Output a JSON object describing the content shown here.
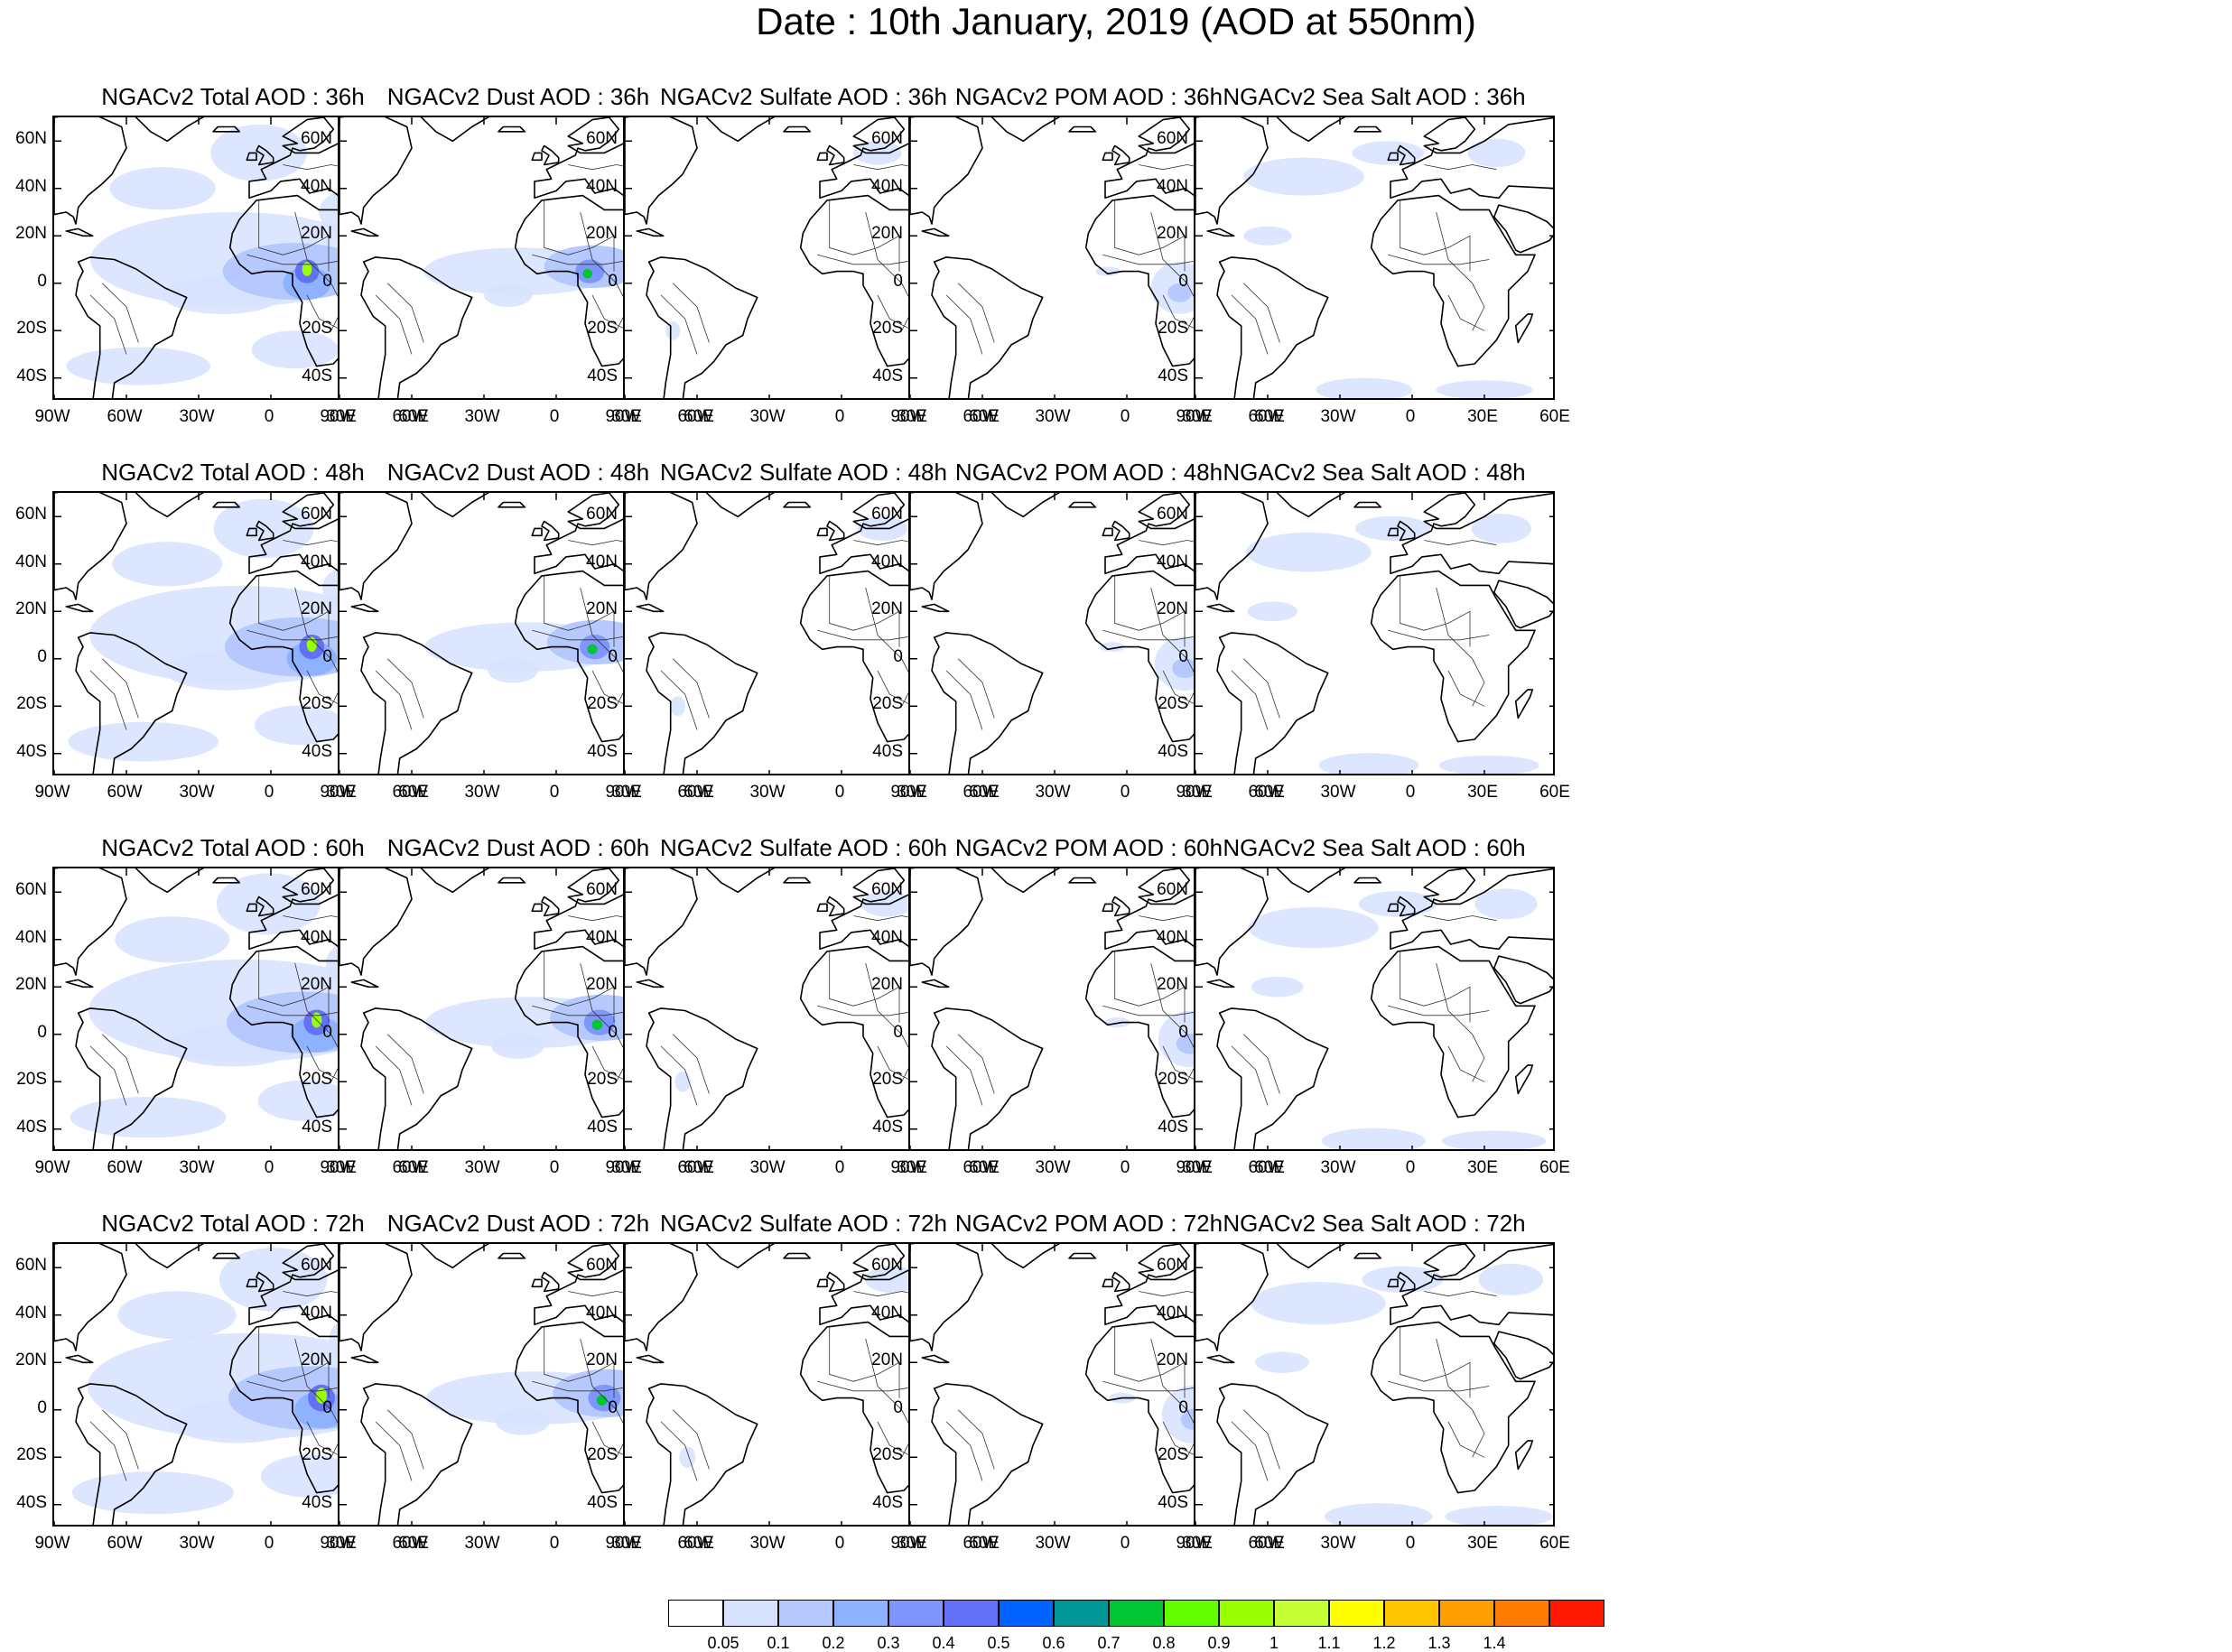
{
  "title": "Date : 10th January, 2019 (AOD at 550nm)",
  "panels": [
    [
      "NGACv2 Total AOD : 36h",
      "NGACv2 Dust AOD : 36h",
      "NGACv2 Sulfate AOD : 36h",
      "NGACv2 POM AOD : 36h",
      "NGACv2 Sea Salt AOD : 36h"
    ],
    [
      "NGACv2 Total AOD : 48h",
      "NGACv2 Dust AOD : 48h",
      "NGACv2 Sulfate AOD : 48h",
      "NGACv2 POM AOD : 48h",
      "NGACv2 Sea Salt AOD : 48h"
    ],
    [
      "NGACv2 Total AOD : 60h",
      "NGACv2 Dust AOD : 60h",
      "NGACv2 Sulfate AOD : 60h",
      "NGACv2 POM AOD : 60h",
      "NGACv2 Sea Salt AOD : 60h"
    ],
    [
      "NGACv2 Total AOD : 72h",
      "NGACv2 Dust AOD : 72h",
      "NGACv2 Sulfate AOD : 72h",
      "NGACv2 POM AOD : 72h",
      "NGACv2 Sea Salt  AOD : 72h"
    ]
  ],
  "lat_ticks": [
    "60N",
    "40N",
    "20N",
    "0",
    "20S",
    "40S"
  ],
  "lat_values": [
    60,
    40,
    20,
    0,
    -20,
    -40
  ],
  "lon_ticks": [
    "90W",
    "60W",
    "30W",
    "0",
    "30E",
    "60E"
  ],
  "lon_ticks_pom": [
    "90W",
    "60W",
    "30W",
    "0",
    "30E",
    "60E"
  ],
  "lon_values": [
    -90,
    -60,
    -30,
    0,
    30,
    60
  ],
  "map_extent": {
    "lon": [
      -90,
      60
    ],
    "lat": [
      -50,
      70
    ]
  },
  "colorbar": {
    "labels": [
      "0.05",
      "0.1",
      "0.2",
      "0.3",
      "0.4",
      "0.5",
      "0.6",
      "0.7",
      "0.8",
      "0.9",
      "1",
      "1.1",
      "1.2",
      "1.3",
      "1.4"
    ],
    "colors": [
      "#ffffff",
      "#d6e2ff",
      "#b5c9ff",
      "#8eb2ff",
      "#7f96ff",
      "#6370f8",
      "#0063ff",
      "#009696",
      "#00c633",
      "#63ff00",
      "#96ff00",
      "#c6ff33",
      "#ffff00",
      "#ffc600",
      "#ffa000",
      "#ff7c00",
      "#ff1900"
    ]
  }
}
